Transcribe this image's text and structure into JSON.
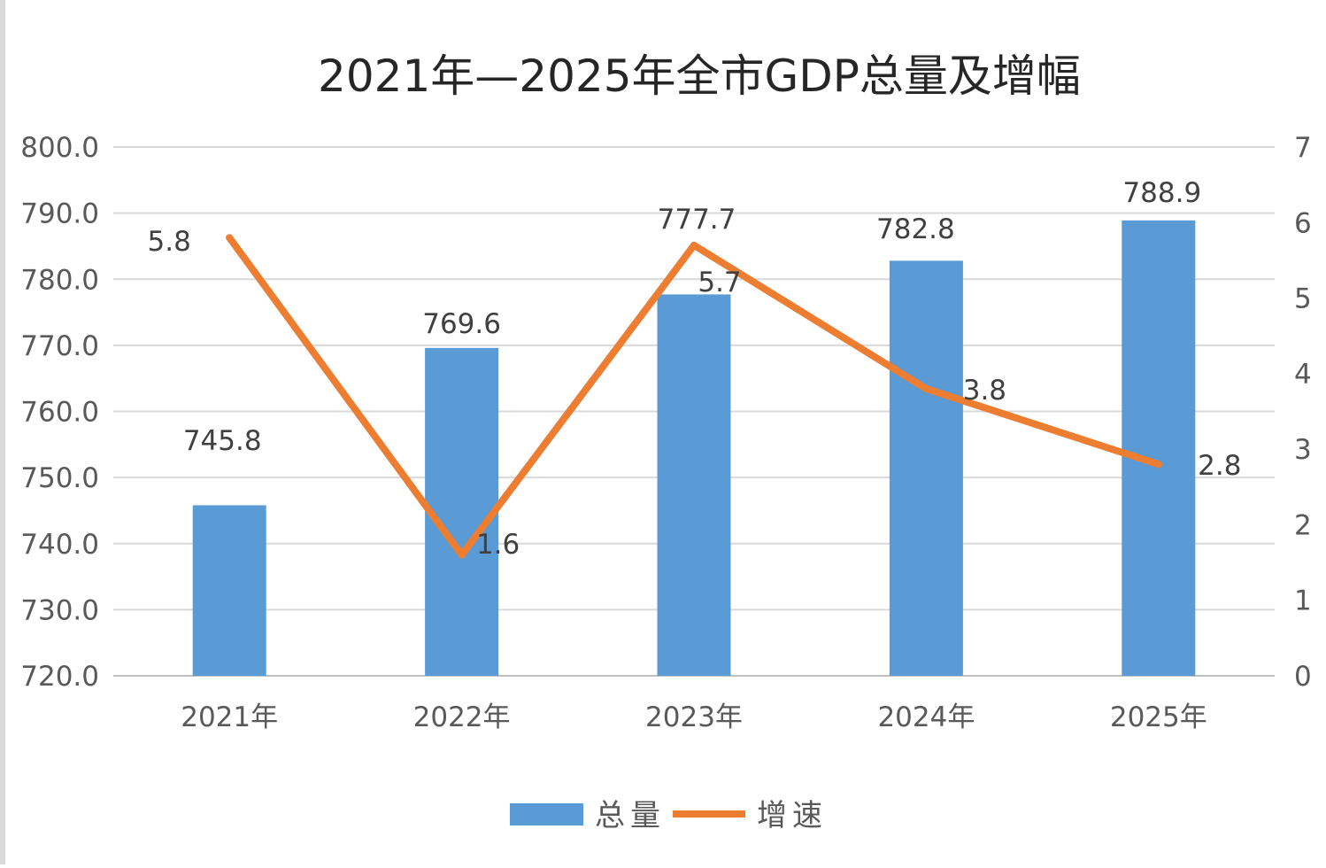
{
  "chart_data": {
    "type": "bar",
    "title": "2021年—2025年全市GDP总量及增幅",
    "categories": [
      "2021年",
      "2022年",
      "2023年",
      "2024年",
      "2025年"
    ],
    "series": [
      {
        "name": "总量",
        "type": "bar",
        "axis": "left",
        "color": "#5B9BD5",
        "values": [
          745.8,
          769.6,
          777.7,
          782.8,
          788.9
        ],
        "labels": [
          "745.8",
          "769.6",
          "777.7",
          "782.8",
          "788.9"
        ]
      },
      {
        "name": "增速",
        "type": "line",
        "axis": "right",
        "color": "#ED7D31",
        "values": [
          5.8,
          1.6,
          5.7,
          3.8,
          2.8
        ],
        "labels": [
          "5.8",
          "1.6",
          "5.7",
          "3.8",
          "2.8"
        ]
      }
    ],
    "y_left": {
      "min": 720,
      "max": 800,
      "step": 10,
      "ticks": [
        "720.0",
        "730.0",
        "740.0",
        "750.0",
        "760.0",
        "770.0",
        "780.0",
        "790.0",
        "800.0"
      ]
    },
    "y_right": {
      "min": 0,
      "max": 7,
      "step": 1,
      "ticks": [
        "0",
        "1",
        "2",
        "3",
        "4",
        "5",
        "6",
        "7"
      ]
    },
    "grid": true,
    "legend_position": "bottom"
  }
}
